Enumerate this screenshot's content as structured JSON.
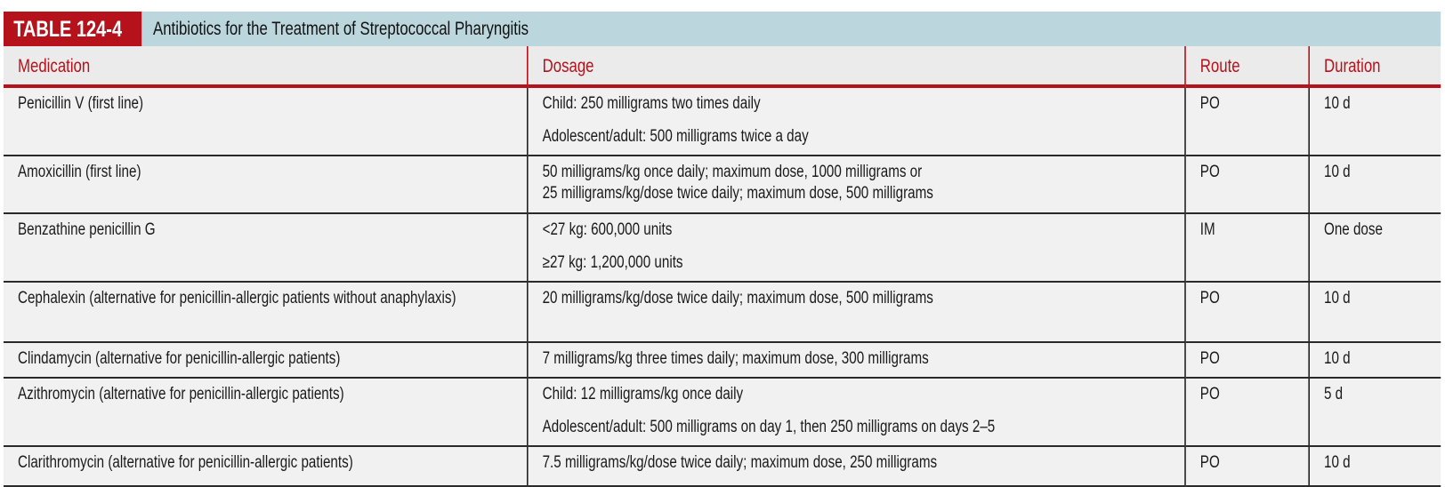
{
  "table": {
    "label": "TABLE 124-4",
    "title": "Antibiotics for the Treatment of Streptococcal Pharyngitis",
    "columns": [
      "Medication",
      "Dosage",
      "Route",
      "Duration"
    ],
    "rows": [
      {
        "medication": "Penicillin V (first line)",
        "dosage": [
          "Child: 250 milligrams two times daily",
          "Adolescent/adult: 500 milligrams twice a day"
        ],
        "dosage_wrap": false,
        "route": "PO",
        "duration": "10 d"
      },
      {
        "medication": "Amoxicillin (first line)",
        "dosage": [
          "50 milligrams/kg once daily; maximum dose, 1000 milligrams or",
          "25 milligrams/kg/dose twice daily; maximum dose, 500 milligrams"
        ],
        "dosage_wrap": true,
        "route": "PO",
        "duration": "10 d"
      },
      {
        "medication": "Benzathine penicillin G",
        "dosage": [
          "<27 kg: 600,000 units",
          "≥27 kg: 1,200,000 units"
        ],
        "dosage_wrap": false,
        "route": "IM",
        "duration": "One dose"
      },
      {
        "medication": "Cephalexin (alternative for penicillin-allergic patients without anaphylaxis)",
        "dosage": [
          "20 milligrams/kg/dose twice daily; maximum dose, 500 milligrams"
        ],
        "dosage_wrap": false,
        "route": "PO",
        "duration": "10 d"
      },
      {
        "medication": "Clindamycin (alternative for penicillin-allergic patients)",
        "dosage": [
          "7 milligrams/kg three times daily; maximum dose, 300 milligrams"
        ],
        "dosage_wrap": false,
        "route": "PO",
        "duration": "10 d"
      },
      {
        "medication": "Azithromycin (alternative for penicillin-allergic patients)",
        "dosage": [
          "Child: 12 milligrams/kg once daily",
          "Adolescent/adult: 500 milligrams on day 1, then 250 milligrams on days 2–5"
        ],
        "dosage_wrap": false,
        "route": "PO",
        "duration": "5 d"
      },
      {
        "medication": "Clarithromycin (alternative for penicillin-allergic patients)",
        "dosage": [
          "7.5 milligrams/kg/dose twice daily; maximum dose, 250 milligrams"
        ],
        "dosage_wrap": false,
        "route": "PO",
        "duration": "10 d"
      }
    ]
  },
  "colors": {
    "accent_red": "#b5121b",
    "title_bar": "#bcd6dd",
    "row_bg": "#f1f1f1"
  }
}
